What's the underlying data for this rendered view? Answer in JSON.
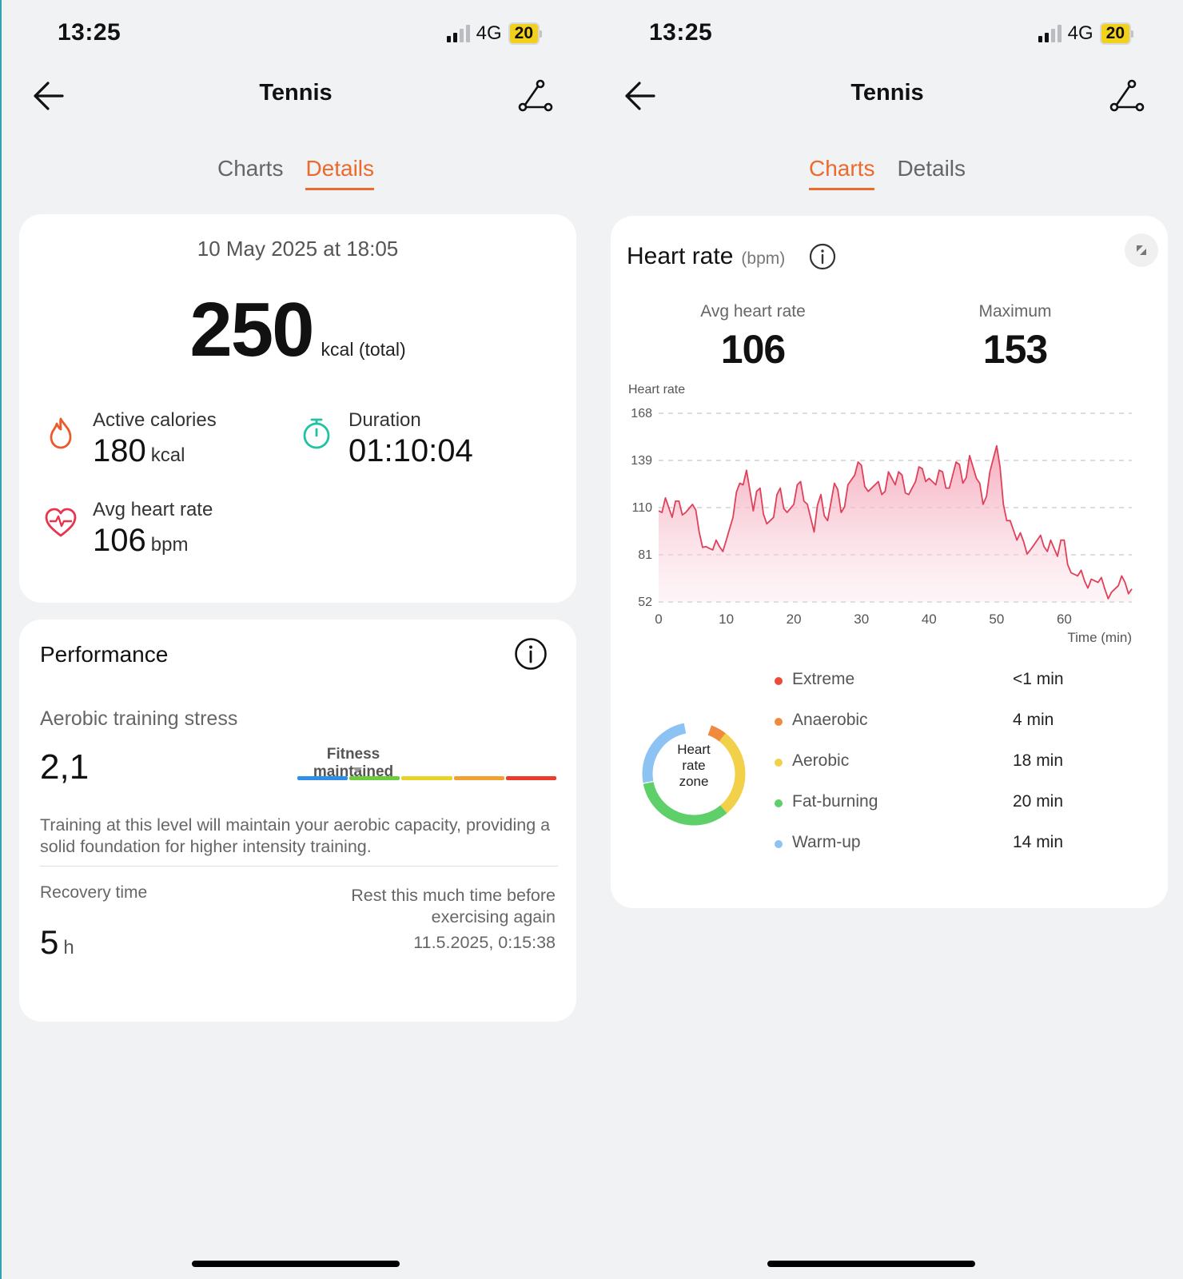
{
  "left": {
    "status": {
      "time": "13:25",
      "network": "4G",
      "battery": "20"
    },
    "nav": {
      "title": "Tennis"
    },
    "tabs": [
      {
        "label": "Charts"
      },
      {
        "label": "Details"
      }
    ],
    "summary": {
      "date": "10 May 2025 at 18:05",
      "total_value": "250",
      "total_unit": "kcal (total)",
      "active_calories": {
        "label": "Active calories",
        "value": "180",
        "unit": "kcal"
      },
      "duration": {
        "label": "Duration",
        "value": "01:10:04"
      },
      "avg_hr": {
        "label": "Avg heart rate",
        "value": "106",
        "unit": "bpm"
      }
    },
    "performance": {
      "title": "Performance",
      "ats_label": "Aerobic training stress",
      "ats_value": "2,1",
      "fitness_label": "Fitness maintained",
      "scale_colors": [
        "#2f8ee8",
        "#6fcd3d",
        "#e9d326",
        "#f2a032",
        "#ec3a2c"
      ],
      "description": "Training at this level will maintain your aerobic capacity, providing a solid foundation for higher intensity training.",
      "recovery_label": "Recovery time",
      "recovery_value": "5",
      "recovery_unit": "h",
      "recovery_note": "Rest this much time before exercising again",
      "recovery_time": "11.5.2025, 0:15:38"
    }
  },
  "right": {
    "status": {
      "time": "13:25",
      "network": "4G",
      "battery": "20"
    },
    "nav": {
      "title": "Tennis"
    },
    "tabs": [
      {
        "label": "Charts"
      },
      {
        "label": "Details"
      }
    ],
    "heart_rate": {
      "title": "Heart rate",
      "unit": "(bpm)",
      "avg_label": "Avg heart rate",
      "avg_value": "106",
      "max_label": "Maximum",
      "max_value": "153",
      "zone_center": [
        "Heart",
        "rate",
        "zone"
      ],
      "zones": [
        {
          "name": "Extreme",
          "value": "<1 min",
          "color": "#ec4b3a"
        },
        {
          "name": "Anaerobic",
          "value": "4 min",
          "color": "#f08a3c"
        },
        {
          "name": "Aerobic",
          "value": "18 min",
          "color": "#f2d04a"
        },
        {
          "name": "Fat-burning",
          "value": "20 min",
          "color": "#5fcf6a"
        },
        {
          "name": "Warm-up",
          "value": "14 min",
          "color": "#8cc3f2"
        }
      ]
    }
  },
  "chart_data": {
    "type": "area",
    "title": "Heart rate",
    "ylabel": "Heart rate",
    "xlabel": "Time (min)",
    "ylim": [
      52,
      168
    ],
    "xlim": [
      0,
      70
    ],
    "yticks": [
      "168",
      "139",
      "110",
      "81",
      "52"
    ],
    "xticks": [
      "0",
      "10",
      "20",
      "30",
      "40",
      "50",
      "60"
    ],
    "grid": true,
    "color": "#e0405a",
    "x": [
      0,
      1,
      2,
      3,
      4,
      5,
      6,
      7,
      8,
      9,
      10,
      11,
      12,
      13,
      14,
      15,
      16,
      17,
      18,
      19,
      20,
      21,
      22,
      23,
      24,
      25,
      26,
      27,
      28,
      29,
      30,
      31,
      32,
      33,
      34,
      35,
      36,
      37,
      38,
      39,
      40,
      41,
      42,
      43,
      44,
      45,
      46,
      47,
      48,
      49,
      50,
      51,
      52,
      53,
      54,
      55,
      56,
      57,
      58,
      59,
      60,
      61,
      62,
      63,
      64,
      65,
      66,
      67,
      68,
      69,
      70
    ],
    "y": [
      108,
      116,
      104,
      114,
      107,
      112,
      95,
      86,
      84,
      86,
      90,
      104,
      125,
      133,
      108,
      122,
      100,
      104,
      122,
      107,
      112,
      126,
      112,
      95,
      118,
      102,
      125,
      107,
      124,
      130,
      136,
      120,
      124,
      118,
      132,
      124,
      130,
      118,
      126,
      134,
      128,
      124,
      132,
      122,
      138,
      125,
      142,
      128,
      112,
      132,
      148,
      112,
      102,
      90,
      89,
      84,
      90,
      86,
      90,
      80,
      90,
      70,
      68,
      65,
      66,
      64,
      60,
      58,
      62,
      64,
      60
    ]
  }
}
